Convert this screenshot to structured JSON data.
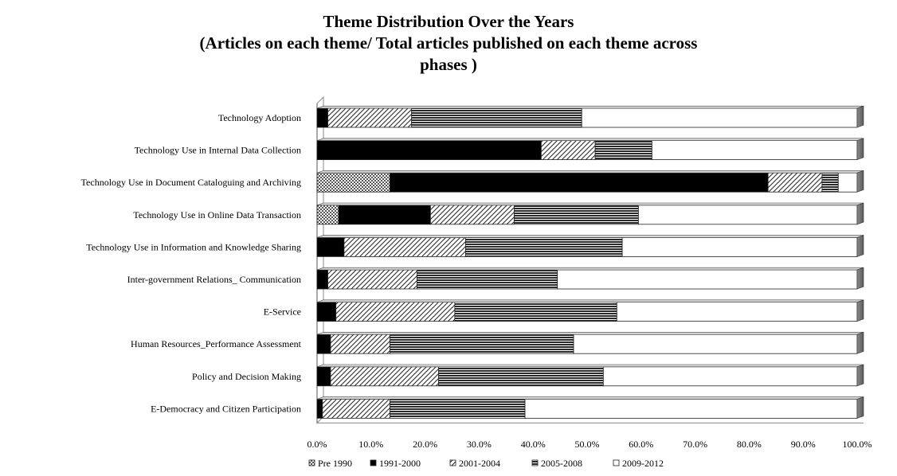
{
  "chart_data": {
    "type": "bar",
    "orientation": "horizontal",
    "stacked": "100%",
    "title_lines": [
      "Theme Distribution Over the Years",
      "(Articles on each theme/ Total articles published on each theme across",
      "phases )"
    ],
    "categories": [
      "Technology Adoption",
      "Technology Use in Internal Data Collection",
      "Technology Use in Document Cataloguing and Archiving",
      "Technology Use in Online Data Transaction",
      "Technology Use in Information and Knowledge Sharing",
      "Inter-government Relations_ Communication",
      "E-Service",
      "Human Resources_Performance Assessment",
      "Policy and Decision Making",
      "E-Democracy  and Citizen Participation"
    ],
    "series": [
      {
        "name": "Pre 1990",
        "pattern": "dots",
        "values": [
          0.0,
          0.0,
          13.5,
          4.0,
          0.0,
          0.0,
          0.0,
          0.0,
          0.0,
          0.0
        ]
      },
      {
        "name": "1991-2000",
        "pattern": "solid",
        "values": [
          2.0,
          41.5,
          70.0,
          17.0,
          5.0,
          2.0,
          3.5,
          2.5,
          2.5,
          1.0
        ]
      },
      {
        "name": "2001-2004",
        "pattern": "diagonal",
        "values": [
          15.5,
          10.0,
          10.0,
          15.5,
          22.5,
          16.5,
          22.0,
          11.0,
          20.0,
          12.5
        ]
      },
      {
        "name": "2005-2008",
        "pattern": "lines",
        "values": [
          31.5,
          10.5,
          3.0,
          23.0,
          29.0,
          26.0,
          30.0,
          34.0,
          30.5,
          25.0
        ]
      },
      {
        "name": "2009-2012",
        "pattern": "empty",
        "values": [
          51.0,
          38.0,
          3.5,
          40.5,
          43.5,
          55.5,
          44.5,
          52.5,
          47.0,
          61.5
        ]
      }
    ],
    "xlim": [
      0,
      100
    ],
    "xticks": [
      "0.0%",
      "10.0%",
      "20.0%",
      "30.0%",
      "40.0%",
      "50.0%",
      "60.0%",
      "70.0%",
      "80.0%",
      "90.0%",
      "100.0%"
    ],
    "legend_position": "bottom",
    "grid": false
  }
}
